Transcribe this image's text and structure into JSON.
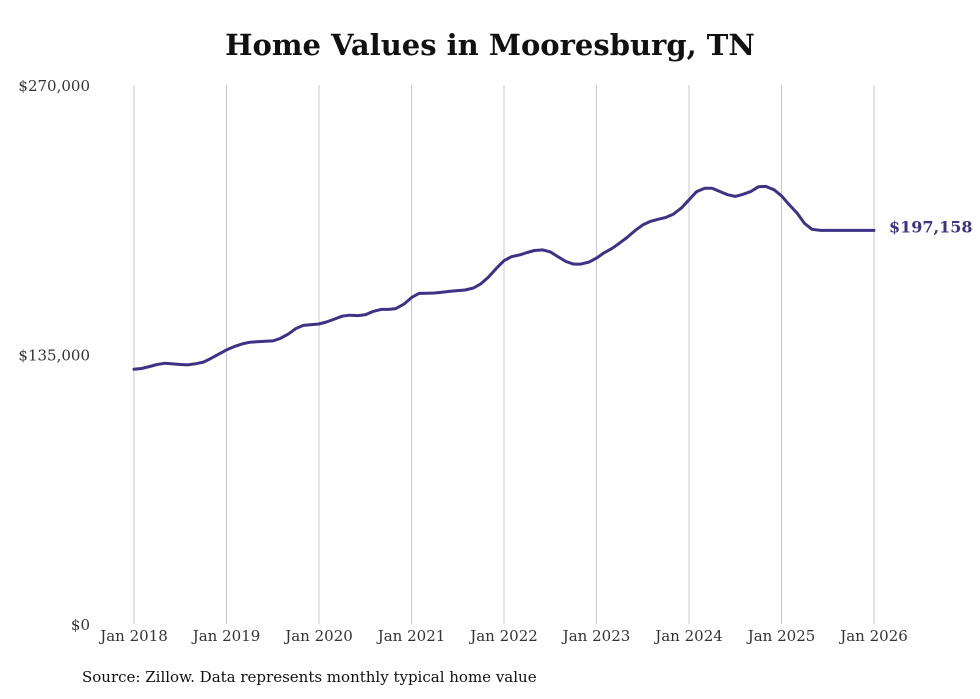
{
  "chart_data": {
    "type": "line",
    "title": "Home Values in Mooresburg, TN",
    "xlabel": "",
    "ylabel": "",
    "ylim": [
      0,
      270000
    ],
    "yticks": [
      {
        "value": 0,
        "label": "$0"
      },
      {
        "value": 135000,
        "label": "$135,000"
      },
      {
        "value": 270000,
        "label": "$270,000"
      }
    ],
    "xticks": [
      {
        "value": 2018.0,
        "label": "Jan 2018"
      },
      {
        "value": 2019.0,
        "label": "Jan 2019"
      },
      {
        "value": 2020.0,
        "label": "Jan 2020"
      },
      {
        "value": 2021.0,
        "label": "Jan 2021"
      },
      {
        "value": 2022.0,
        "label": "Jan 2022"
      },
      {
        "value": 2023.0,
        "label": "Jan 2023"
      },
      {
        "value": 2024.0,
        "label": "Jan 2024"
      },
      {
        "value": 2025.0,
        "label": "Jan 2025"
      },
      {
        "value": 2026.0,
        "label": "Jan 2026"
      }
    ],
    "xlim": [
      2018.0,
      2026.0
    ],
    "grid": "vertical",
    "series_color": "#3d3286",
    "series": [
      {
        "name": "Typical home value",
        "x": [
          2018.0,
          2018.08,
          2018.17,
          2018.25,
          2018.33,
          2018.42,
          2018.5,
          2018.58,
          2018.67,
          2018.75,
          2018.83,
          2018.92,
          2019.0,
          2019.08,
          2019.17,
          2019.25,
          2019.33,
          2019.42,
          2019.5,
          2019.58,
          2019.67,
          2019.75,
          2019.83,
          2019.92,
          2020.0,
          2020.08,
          2020.17,
          2020.25,
          2020.33,
          2020.42,
          2020.5,
          2020.58,
          2020.67,
          2020.75,
          2020.83,
          2020.92,
          2021.0,
          2021.08,
          2021.17,
          2021.25,
          2021.33,
          2021.42,
          2021.5,
          2021.58,
          2021.67,
          2021.75,
          2021.83,
          2021.92,
          2022.0,
          2022.08,
          2022.17,
          2022.25,
          2022.33,
          2022.42,
          2022.5,
          2022.58,
          2022.67,
          2022.75,
          2022.83,
          2022.92,
          2023.0,
          2023.08,
          2023.17,
          2023.25,
          2023.33,
          2023.42,
          2023.5,
          2023.58,
          2023.67,
          2023.75,
          2023.83,
          2023.92,
          2024.0,
          2024.08,
          2024.17,
          2024.25,
          2024.33,
          2024.42,
          2024.5,
          2024.58,
          2024.67,
          2024.75,
          2024.83,
          2024.92,
          2025.0,
          2025.08,
          2025.17,
          2025.25,
          2025.33,
          2025.42,
          2025.5,
          2025.58,
          2025.67,
          2025.75,
          2025.83,
          2025.92,
          2026.0
        ],
        "values": [
          127600,
          128000,
          129000,
          130000,
          130600,
          130300,
          130000,
          129800,
          130400,
          131200,
          133000,
          135300,
          137300,
          138900,
          140300,
          141100,
          141400,
          141600,
          141800,
          143000,
          145300,
          148000,
          149600,
          150000,
          150300,
          151300,
          152800,
          154200,
          154700,
          154500,
          154900,
          156500,
          157600,
          157600,
          158000,
          160300,
          163500,
          165600,
          165700,
          165800,
          166200,
          166700,
          167000,
          167300,
          168300,
          170400,
          173700,
          178300,
          182000,
          184000,
          184900,
          186100,
          187100,
          187400,
          186400,
          184100,
          181600,
          180300,
          180300,
          181300,
          183300,
          185900,
          188200,
          190800,
          193600,
          197200,
          199900,
          201600,
          202800,
          203700,
          205300,
          208500,
          212500,
          216500,
          218300,
          218300,
          216700,
          215000,
          214200,
          215200,
          216700,
          219000,
          219200,
          217500,
          214500,
          210200,
          205800,
          200600,
          197700,
          197158,
          197158,
          197158,
          197158,
          197158,
          197158,
          197158,
          197158
        ]
      }
    ],
    "end_label": "$197,158",
    "source_note": "Source: Zillow. Data represents monthly typical home value"
  }
}
